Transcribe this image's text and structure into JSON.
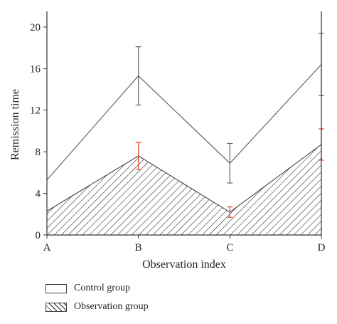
{
  "chart_data": {
    "type": "area",
    "xlabel": "Observation index",
    "ylabel": "Remission time",
    "categories": [
      "A",
      "B",
      "C",
      "D"
    ],
    "ylim": [
      0,
      21.5
    ],
    "yticks": [
      0,
      4,
      8,
      12,
      16,
      20
    ],
    "grid": false,
    "legend_position": "bottom-left",
    "series": [
      {
        "name": "Control group",
        "style": "line",
        "color": "#666666",
        "values": [
          5.3,
          15.3,
          6.9,
          16.4
        ],
        "error": [
          null,
          2.8,
          1.9,
          3.0
        ]
      },
      {
        "name": "Observation group",
        "style": "hatched-area",
        "color": "#222222",
        "error_color": "#e0402a",
        "values": [
          2.3,
          7.6,
          2.2,
          8.7
        ],
        "error": [
          null,
          1.3,
          0.5,
          1.5
        ]
      }
    ]
  }
}
